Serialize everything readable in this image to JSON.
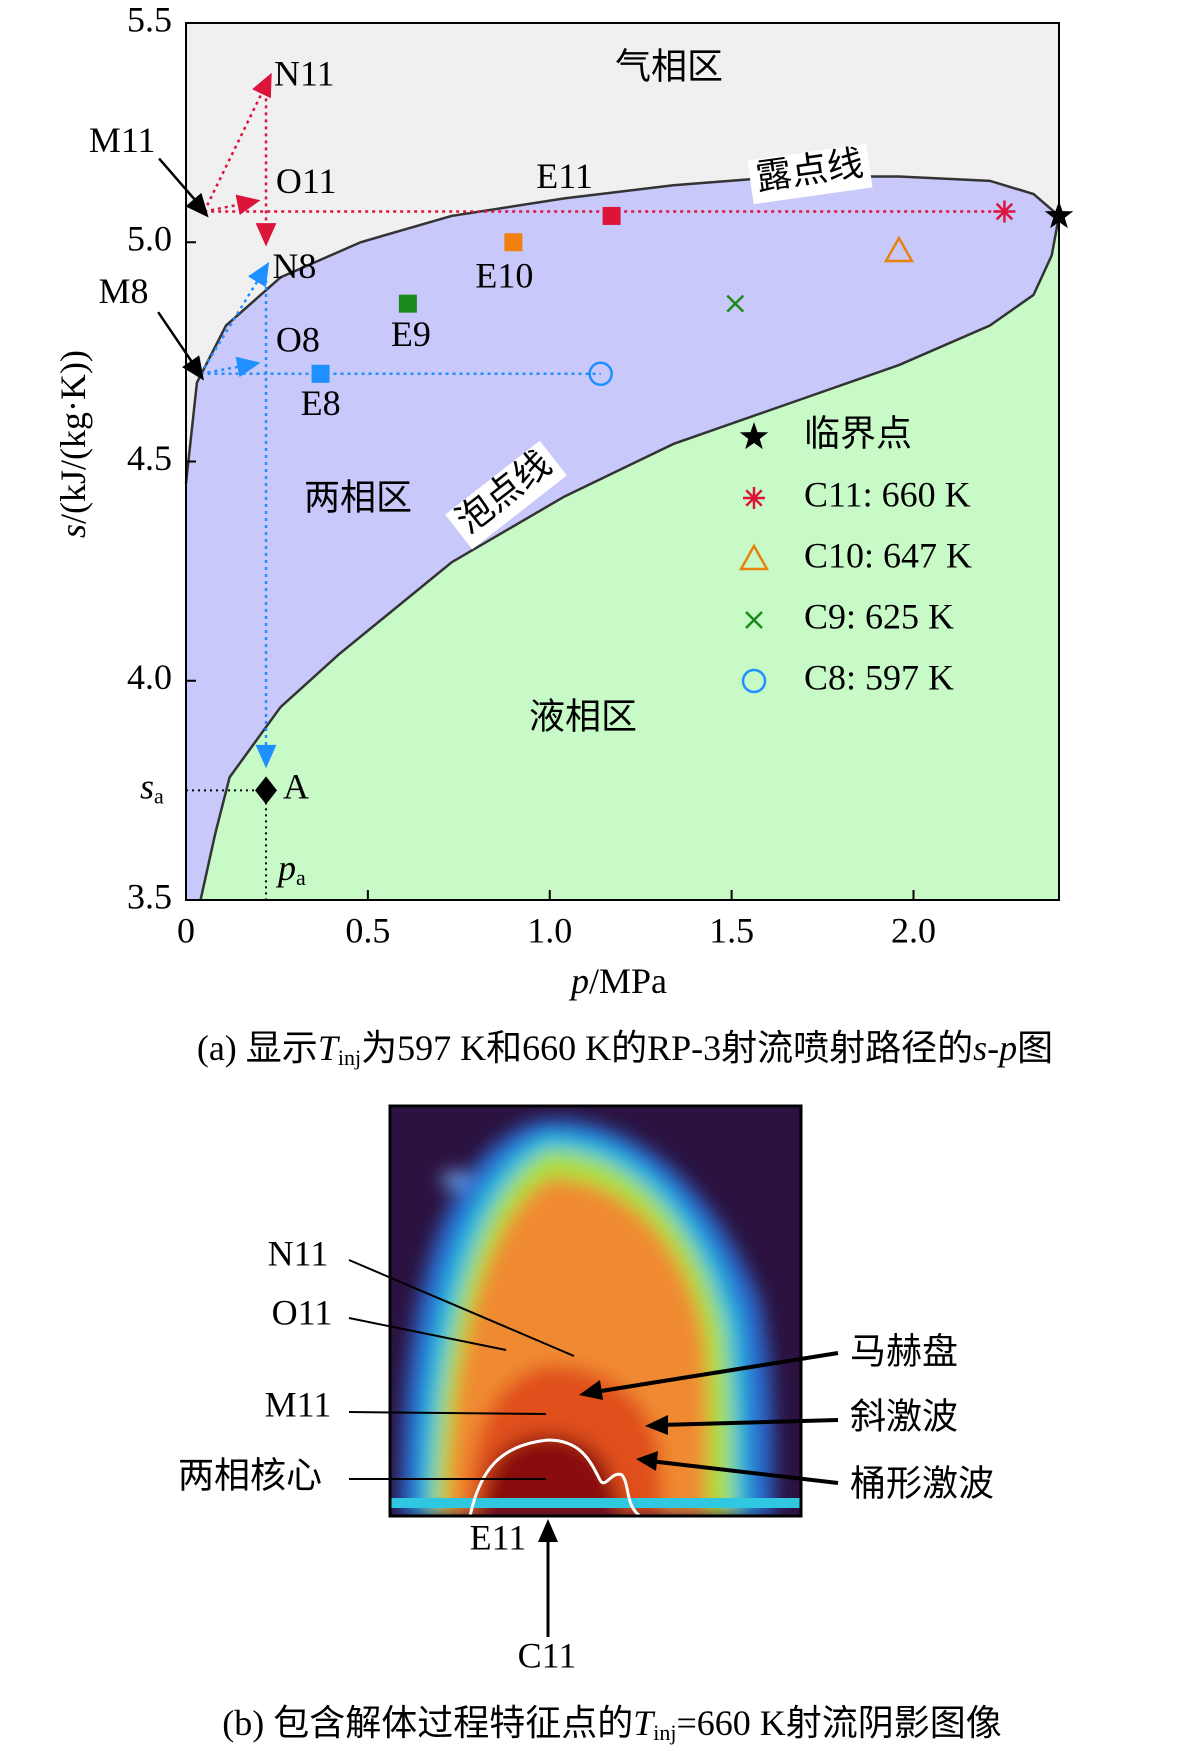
{
  "chart_data": {
    "type": "scatter",
    "x_label": [
      "p",
      "/MPa"
    ],
    "y_label": [
      "s",
      "/(kJ/(kg·K))"
    ],
    "xlim": [
      0,
      2.4
    ],
    "ylim": [
      3.5,
      5.5
    ],
    "xticks": [
      0,
      0.5,
      {
        "value": 1,
        "label": "1.0"
      },
      1.5,
      {
        "value": 2,
        "label": "2.0"
      }
    ],
    "yticks": [
      3.5,
      {
        "value": 4,
        "label": "4.0"
      },
      4.5,
      {
        "value": 5,
        "label": "5.0"
      },
      5.5
    ],
    "regions": [
      {
        "name": "气相区",
        "color": "#f0f0f0"
      },
      {
        "name": "两相区",
        "color": "#c8c8fa"
      },
      {
        "name": "液相区",
        "color": "#c8fac8"
      }
    ],
    "curves": [
      {
        "name": "露点线",
        "x": [
          0,
          0.03,
          0.11,
          0.26,
          0.48,
          0.73,
          1.04,
          1.34,
          1.65,
          1.96,
          2.21,
          2.33,
          2.4
        ],
        "y": [
          4.45,
          4.68,
          4.81,
          4.92,
          5.0,
          5.06,
          5.1,
          5.13,
          5.15,
          5.15,
          5.14,
          5.11,
          5.06
        ]
      },
      {
        "name": "泡点线",
        "x": [
          0.04,
          0.08,
          0.12,
          0.26,
          0.42,
          0.73,
          1.04,
          1.34,
          1.65,
          1.96,
          2.21,
          2.33,
          2.38,
          2.4
        ],
        "y": [
          3.5,
          3.65,
          3.78,
          3.94,
          4.06,
          4.27,
          4.42,
          4.54,
          4.63,
          4.72,
          4.81,
          4.88,
          4.97,
          5.06
        ]
      }
    ],
    "series": [
      {
        "name": "临界点",
        "marker": "star",
        "color": "#000000",
        "x": [
          2.4
        ],
        "values": [
          5.06
        ]
      },
      {
        "name": "C11: 660 K",
        "marker": "asterisk",
        "color": "#dc143c",
        "x": [
          2.25
        ],
        "values": [
          5.07
        ]
      },
      {
        "name": "C10: 647 K",
        "marker": "triangle-open",
        "color": "#e8820c",
        "x": [
          1.96
        ],
        "values": [
          4.98
        ]
      },
      {
        "name": "C9: 625 K",
        "marker": "cross",
        "color": "#1a8a1a",
        "x": [
          1.51
        ],
        "values": [
          4.86
        ]
      },
      {
        "name": "C8: 597 K",
        "marker": "circle-open",
        "color": "#1e90ff",
        "x": [
          1.14
        ],
        "values": [
          4.7
        ]
      }
    ],
    "paths": [
      {
        "color": "#dc143c",
        "arrow": true,
        "x": [
          0.05,
          0.22
        ],
        "y": [
          5.07,
          5.36
        ]
      },
      {
        "color": "#dc143c",
        "arrow": true,
        "x": [
          0.22,
          0.22
        ],
        "y": [
          5.36,
          5.02
        ]
      },
      {
        "color": "#dc143c",
        "arrow": true,
        "x": [
          0.05,
          0.17
        ],
        "y": [
          5.07,
          5.09
        ]
      },
      {
        "color": "#dc143c",
        "arrow": false,
        "x": [
          0.05,
          2.25
        ],
        "y": [
          5.07,
          5.07
        ]
      },
      {
        "color": "#1e90ff",
        "arrow": true,
        "x": [
          0.04,
          0.21
        ],
        "y": [
          4.7,
          4.93
        ]
      },
      {
        "color": "#1e90ff",
        "arrow": true,
        "x": [
          0.22,
          0.22
        ],
        "y": [
          4.93,
          3.83
        ]
      },
      {
        "color": "#1e90ff",
        "arrow": true,
        "x": [
          0.04,
          0.17
        ],
        "y": [
          4.7,
          4.72
        ]
      },
      {
        "color": "#1e90ff",
        "arrow": false,
        "x": [
          0.04,
          1.14
        ],
        "y": [
          4.7,
          4.7
        ]
      }
    ],
    "points": [
      {
        "name": "E8",
        "marker": "square",
        "color": "#1e90ff",
        "x": 0.37,
        "y": 4.7
      },
      {
        "name": "E9",
        "marker": "square",
        "color": "#1a8a1a",
        "x": 0.61,
        "y": 4.86
      },
      {
        "name": "E10",
        "marker": "square",
        "color": "#f08010",
        "x": 0.9,
        "y": 5.0
      },
      {
        "name": "E11",
        "marker": "square",
        "color": "#dc143c",
        "x": 1.17,
        "y": 5.06
      },
      {
        "name": "N11",
        "marker": "none",
        "color": "#000000",
        "x": 0.22,
        "y": 5.36
      },
      {
        "name": "O11",
        "marker": "none",
        "color": "#000000",
        "x": 0.17,
        "y": 5.09
      },
      {
        "name": "N8",
        "marker": "none",
        "color": "#000000",
        "x": 0.21,
        "y": 4.93
      },
      {
        "name": "O8",
        "marker": "none",
        "color": "#000000",
        "x": 0.17,
        "y": 4.72
      },
      {
        "name": "M11",
        "marker": "pointer",
        "color": "#000000",
        "x": 0.05,
        "y": 5.07
      },
      {
        "name": "M8",
        "marker": "pointer",
        "color": "#000000",
        "x": 0.04,
        "y": 4.7
      },
      {
        "name": "A",
        "marker": "diamond",
        "color": "#000000",
        "x": 0.22,
        "y": 3.75
      }
    ],
    "reference_labels": {
      "s": "s",
      "s_sub": "a",
      "p": "p",
      "p_sub": "a"
    },
    "caption": [
      "(a) 显示",
      "T",
      "inj",
      "为597 K和660 K的RP-3射流喷射路径的",
      "s",
      "-",
      "p",
      "图"
    ]
  },
  "panel_b": {
    "left_labels": [
      "N11",
      "O11",
      "M11",
      "两相核心"
    ],
    "right_labels": [
      "马赫盘",
      "斜激波",
      "桶形激波"
    ],
    "exit_label": "E11",
    "view_label": "C11",
    "caption": [
      "(b) 包含解体过程特征点的",
      "T",
      "inj",
      "=660 K射流阴影图像"
    ]
  }
}
